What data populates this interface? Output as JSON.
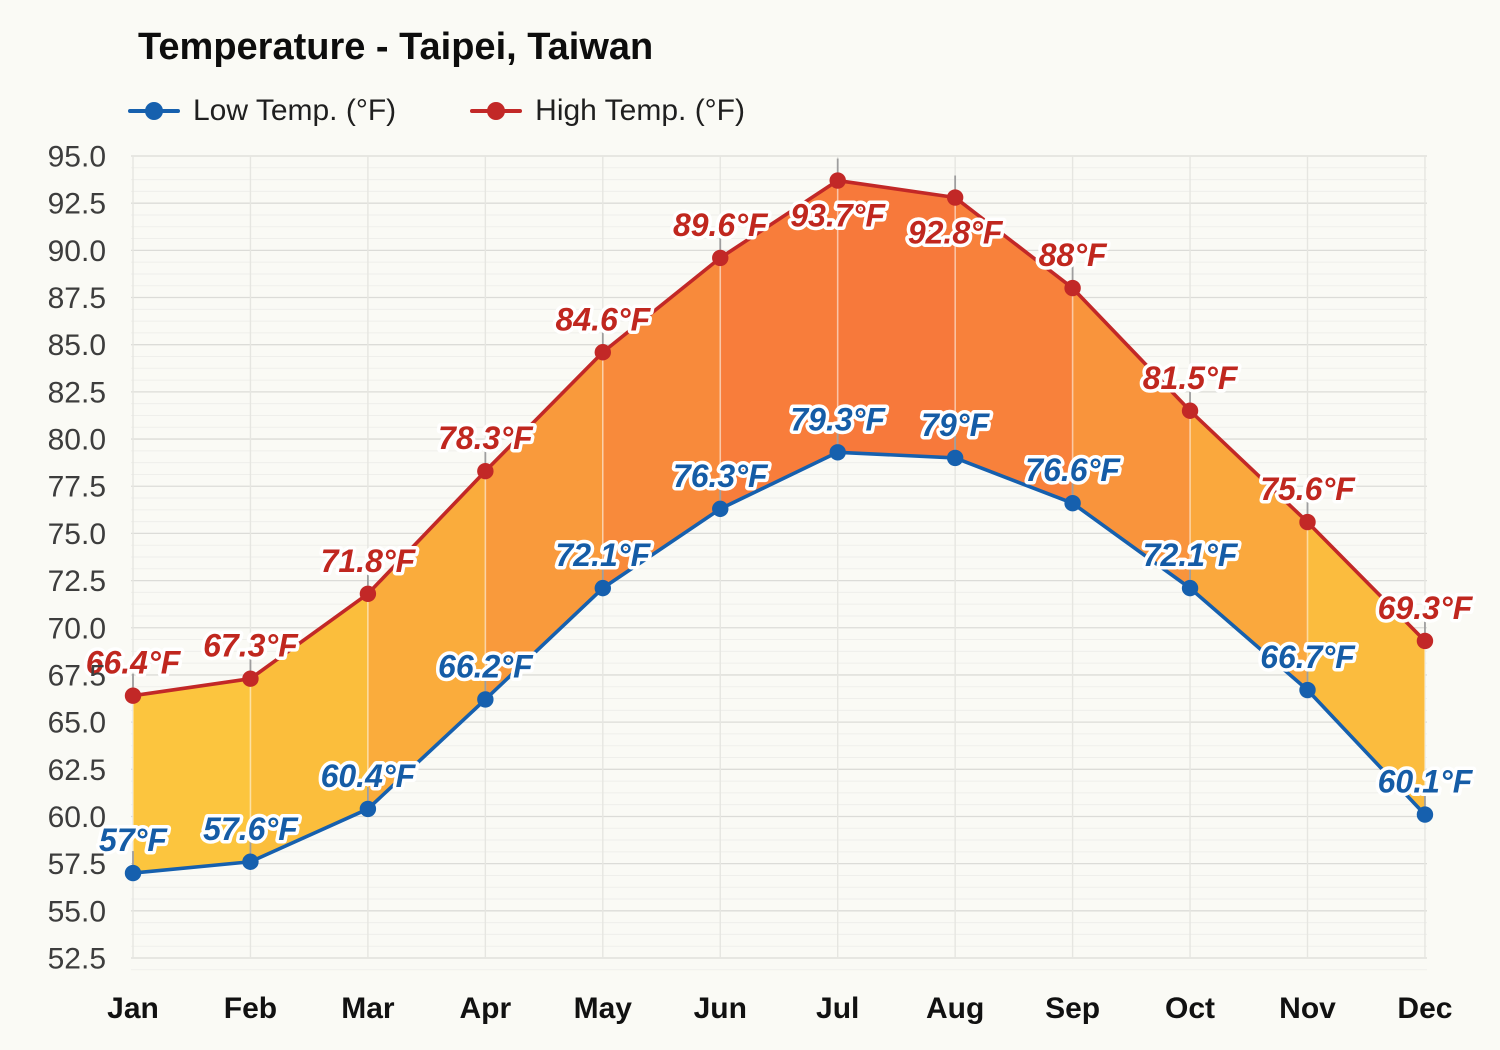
{
  "title": "Temperature - Taipei, Taiwan",
  "chart_data": {
    "type": "line",
    "title": "Temperature - Taipei, Taiwan",
    "categories": [
      "Jan",
      "Feb",
      "Mar",
      "Apr",
      "May",
      "Jun",
      "Jul",
      "Aug",
      "Sep",
      "Oct",
      "Nov",
      "Dec"
    ],
    "series": [
      {
        "name": "Low Temp. (°F)",
        "color": "#1660AE",
        "values": [
          57,
          57.6,
          60.4,
          66.2,
          72.1,
          76.3,
          79.3,
          79,
          76.6,
          72.1,
          66.7,
          60.1
        ],
        "labels": [
          "57°F",
          "57.6°F",
          "60.4°F",
          "66.2°F",
          "72.1°F",
          "76.3°F",
          "79.3°F",
          "79°F",
          "76.6°F",
          "72.1°F",
          "66.7°F",
          "60.1°F"
        ]
      },
      {
        "name": "High Temp. (°F)",
        "color": "#C22827",
        "values": [
          66.4,
          67.3,
          71.8,
          78.3,
          84.6,
          89.6,
          93.7,
          92.8,
          88,
          81.5,
          75.6,
          69.3
        ],
        "labels": [
          "66.4°F",
          "67.3°F",
          "71.8°F",
          "78.3°F",
          "84.6°F",
          "89.6°F",
          "93.7°F",
          "92.8°F",
          "88°F",
          "81.5°F",
          "75.6°F",
          "69.3°F"
        ]
      }
    ],
    "unit": "°F",
    "ylim": [
      52.5,
      95.0
    ],
    "ytick_step": 2.5,
    "ytick_labels": [
      "52.5",
      "55.0",
      "57.5",
      "60.0",
      "62.5",
      "65.0",
      "67.5",
      "70.0",
      "72.5",
      "75.0",
      "77.5",
      "80.0",
      "82.5",
      "85.0",
      "87.5",
      "90.0",
      "92.5",
      "95.0"
    ],
    "grid": true,
    "legend_position": "top-left",
    "colors": {
      "low_line": "#1660AE",
      "high_line": "#C22827",
      "low_label": "#155CA6",
      "high_label": "#C0271F",
      "grid_major": "#dcdcd8",
      "grid_minor": "#efefeb",
      "band_fill": [
        "#FCC53E",
        "#FBBE3C",
        "#FAAC3C",
        "#F99A3C",
        "#F88A3B",
        "#F87D3B",
        "#F7793B",
        "#F8813B",
        "#F9943C",
        "#FAA83D",
        "#FBBC3E"
      ]
    }
  }
}
